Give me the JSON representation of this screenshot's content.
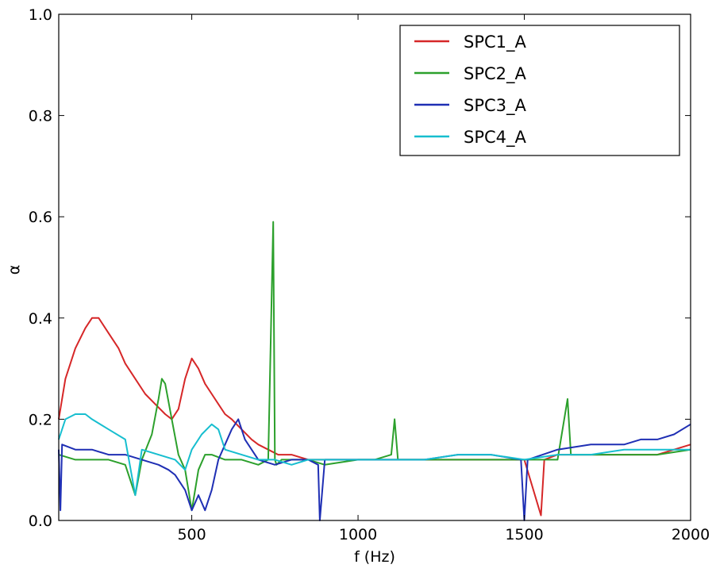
{
  "chart_data": {
    "type": "line",
    "title": "",
    "xlabel": "f (Hz)",
    "ylabel": "α",
    "xlim": [
      100,
      2000
    ],
    "ylim": [
      0.0,
      1.0
    ],
    "x_ticks": [
      500,
      1000,
      1500,
      2000
    ],
    "x_tick_labels": [
      "500",
      "1000",
      "1500",
      "2000"
    ],
    "y_ticks": [
      0.0,
      0.2,
      0.4,
      0.6,
      0.8,
      1.0
    ],
    "y_tick_labels": [
      "0.0",
      "0.2",
      "0.4",
      "0.6",
      "0.8",
      "1.0"
    ],
    "grid": false,
    "legend_position": "upper right",
    "series": [
      {
        "name": "SPC1_A",
        "color": "#d62728",
        "x": [
          100,
          120,
          150,
          180,
          200,
          220,
          250,
          280,
          300,
          330,
          360,
          390,
          420,
          440,
          460,
          480,
          500,
          520,
          540,
          560,
          580,
          600,
          620,
          650,
          680,
          700,
          730,
          760,
          800,
          850,
          900,
          950,
          1000,
          1100,
          1200,
          1300,
          1400,
          1500,
          1550,
          1560,
          1600,
          1700,
          1800,
          1900,
          1950,
          2000
        ],
        "y": [
          0.2,
          0.28,
          0.34,
          0.38,
          0.4,
          0.4,
          0.37,
          0.34,
          0.31,
          0.28,
          0.25,
          0.23,
          0.21,
          0.2,
          0.22,
          0.28,
          0.32,
          0.3,
          0.27,
          0.25,
          0.23,
          0.21,
          0.2,
          0.18,
          0.16,
          0.15,
          0.14,
          0.13,
          0.13,
          0.12,
          0.12,
          0.12,
          0.12,
          0.12,
          0.12,
          0.12,
          0.12,
          0.12,
          0.01,
          0.12,
          0.13,
          0.13,
          0.13,
          0.13,
          0.14,
          0.15
        ]
      },
      {
        "name": "SPC2_A",
        "color": "#2ca02c",
        "x": [
          100,
          150,
          200,
          250,
          300,
          330,
          350,
          380,
          400,
          410,
          420,
          440,
          460,
          480,
          500,
          520,
          540,
          560,
          600,
          650,
          700,
          730,
          745,
          750,
          755,
          770,
          800,
          850,
          900,
          1000,
          1050,
          1100,
          1110,
          1120,
          1200,
          1300,
          1400,
          1500,
          1600,
          1630,
          1640,
          1700,
          1800,
          1900,
          2000
        ],
        "y": [
          0.13,
          0.12,
          0.12,
          0.12,
          0.11,
          0.05,
          0.12,
          0.17,
          0.24,
          0.28,
          0.27,
          0.2,
          0.13,
          0.1,
          0.02,
          0.1,
          0.13,
          0.13,
          0.12,
          0.12,
          0.11,
          0.12,
          0.59,
          0.12,
          0.11,
          0.12,
          0.12,
          0.12,
          0.11,
          0.12,
          0.12,
          0.13,
          0.2,
          0.12,
          0.12,
          0.12,
          0.12,
          0.12,
          0.12,
          0.24,
          0.13,
          0.13,
          0.13,
          0.13,
          0.14
        ]
      },
      {
        "name": "SPC3_A",
        "color": "#1f2fb4",
        "x": [
          100,
          105,
          110,
          150,
          200,
          250,
          300,
          350,
          400,
          430,
          450,
          480,
          500,
          520,
          540,
          560,
          580,
          600,
          620,
          640,
          660,
          700,
          750,
          800,
          850,
          880,
          885,
          900,
          950,
          1000,
          1100,
          1200,
          1300,
          1400,
          1490,
          1500,
          1510,
          1600,
          1700,
          1800,
          1850,
          1900,
          1950,
          2000
        ],
        "y": [
          0.14,
          0.02,
          0.15,
          0.14,
          0.14,
          0.13,
          0.13,
          0.12,
          0.11,
          0.1,
          0.09,
          0.06,
          0.02,
          0.05,
          0.02,
          0.06,
          0.12,
          0.15,
          0.18,
          0.2,
          0.16,
          0.12,
          0.11,
          0.12,
          0.12,
          0.11,
          0.0,
          0.12,
          0.12,
          0.12,
          0.12,
          0.12,
          0.13,
          0.13,
          0.12,
          0.0,
          0.12,
          0.14,
          0.15,
          0.15,
          0.16,
          0.16,
          0.17,
          0.19
        ]
      },
      {
        "name": "SPC4_A",
        "color": "#17becf",
        "x": [
          100,
          120,
          150,
          180,
          200,
          250,
          300,
          330,
          350,
          400,
          450,
          480,
          500,
          530,
          560,
          580,
          600,
          650,
          700,
          750,
          800,
          850,
          900,
          950,
          1000,
          1100,
          1200,
          1300,
          1400,
          1500,
          1600,
          1700,
          1800,
          1900,
          2000
        ],
        "y": [
          0.16,
          0.2,
          0.21,
          0.21,
          0.2,
          0.18,
          0.16,
          0.05,
          0.14,
          0.13,
          0.12,
          0.1,
          0.14,
          0.17,
          0.19,
          0.18,
          0.14,
          0.13,
          0.12,
          0.12,
          0.11,
          0.12,
          0.12,
          0.12,
          0.12,
          0.12,
          0.12,
          0.13,
          0.13,
          0.12,
          0.13,
          0.13,
          0.14,
          0.14,
          0.14
        ]
      }
    ]
  }
}
